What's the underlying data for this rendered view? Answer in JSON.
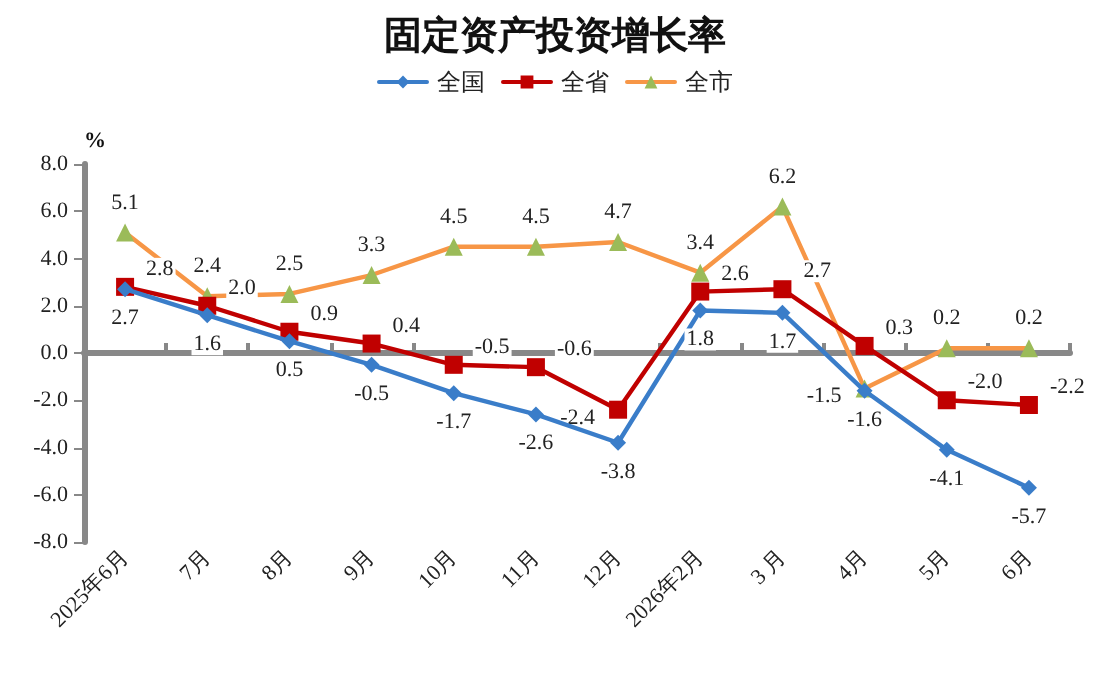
{
  "chart_data": {
    "type": "line",
    "title": "固定资产投资增长率",
    "ylabel": "%",
    "categories": [
      "2025年6月",
      "7月",
      "8月",
      "9月",
      "10月",
      "11月",
      "12月",
      "2026年2月",
      "3 月",
      "4月",
      "5月",
      "6月"
    ],
    "series": [
      {
        "name": "全国",
        "color": "#3a7dc9",
        "marker": "diamond",
        "values": [
          2.7,
          1.6,
          0.5,
          -0.5,
          -1.7,
          -2.6,
          -3.8,
          1.8,
          1.7,
          -1.6,
          -4.1,
          -5.7
        ],
        "value_labels": [
          "2.7",
          "1.6",
          "0.5",
          "-0.5",
          "-1.7",
          "-2.6",
          "-3.8",
          "1.8",
          "1.7",
          "-1.6",
          "-4.1",
          "-5.7"
        ]
      },
      {
        "name": "全省",
        "color": "#c00000",
        "marker": "square",
        "values": [
          2.8,
          2.0,
          0.9,
          0.4,
          -0.5,
          -0.6,
          -2.4,
          2.6,
          2.7,
          0.3,
          -2.0,
          -2.2
        ],
        "value_labels": [
          "2.8",
          "2.0",
          "0.9",
          "0.4",
          "-0.5",
          "-0.6",
          "-2.4",
          "2.6",
          "2.7",
          "0.3",
          "-2.0",
          "-2.2"
        ]
      },
      {
        "name": "全市",
        "color": "#f79646",
        "marker": "triangle",
        "values": [
          5.1,
          2.4,
          2.5,
          3.3,
          4.5,
          4.5,
          4.7,
          3.4,
          6.2,
          -1.5,
          0.2,
          0.2
        ],
        "value_labels": [
          "5.1",
          "2.4",
          "2.5",
          "3.3",
          "4.5",
          "4.5",
          "4.7",
          "3.4",
          "6.2",
          "-1.5",
          "0.2",
          "0.2"
        ]
      }
    ],
    "ylim": [
      -8,
      8
    ],
    "yticks": [
      {
        "value": -8,
        "label": "-8.0"
      },
      {
        "value": -6,
        "label": "-6.0"
      },
      {
        "value": -4,
        "label": "-4.0"
      },
      {
        "value": -2,
        "label": "-2.0"
      },
      {
        "value": 0,
        "label": "0.0"
      },
      {
        "value": 2,
        "label": "2.0"
      },
      {
        "value": 4,
        "label": "4.0"
      },
      {
        "value": 6,
        "label": "6.0"
      },
      {
        "value": 8,
        "label": "8.0"
      }
    ],
    "legend": "top",
    "line_style": "solid"
  }
}
